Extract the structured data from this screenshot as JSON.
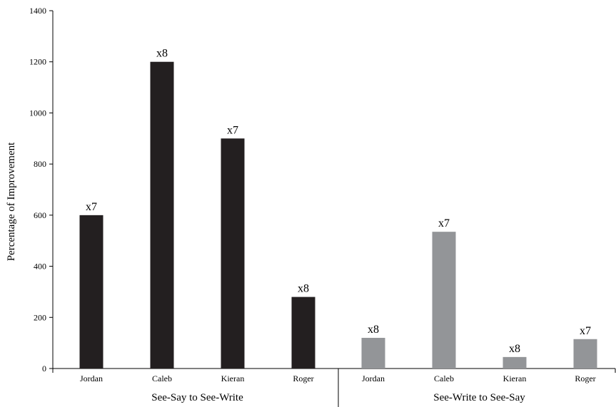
{
  "chart_data": {
    "type": "bar",
    "title": "",
    "xlabel": "",
    "ylabel": "Percentage of Improvement",
    "ylim": [
      0,
      1400
    ],
    "yticks": [
      0,
      200,
      400,
      600,
      800,
      1000,
      1200,
      1400
    ],
    "grid": false,
    "groups": [
      {
        "label": "See-Say to See-Write",
        "color": "#231f20",
        "bars": [
          {
            "category": "Jordan",
            "value": 600,
            "label": "x7"
          },
          {
            "category": "Caleb",
            "value": 1200,
            "label": "x8"
          },
          {
            "category": "Kieran",
            "value": 900,
            "label": "x7"
          },
          {
            "category": "Roger",
            "value": 280,
            "label": "x8"
          }
        ]
      },
      {
        "label": "See-Write to See-Say",
        "color": "#939598",
        "bars": [
          {
            "category": "Jordan",
            "value": 120,
            "label": "x8"
          },
          {
            "category": "Caleb",
            "value": 535,
            "label": "x7"
          },
          {
            "category": "Kieran",
            "value": 45,
            "label": "x8"
          },
          {
            "category": "Roger",
            "value": 115,
            "label": "x7"
          }
        ]
      }
    ]
  }
}
